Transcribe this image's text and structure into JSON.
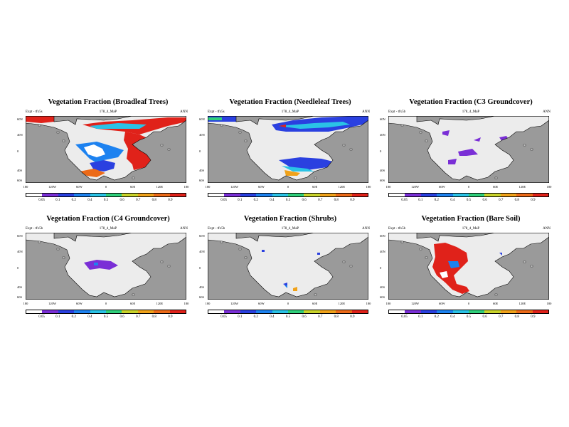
{
  "colors": {
    "ocean": "#9a9a9a",
    "land_low": "#ececec",
    "coast": "#000000",
    "scale": [
      "#ffffff",
      "#7a2fd6",
      "#2a40e0",
      "#1d82f0",
      "#2ac3e6",
      "#2fcf7a",
      "#c9d32a",
      "#f0a21a",
      "#ec6a18",
      "#e0221a"
    ]
  },
  "colorbar": {
    "labels": [
      "0.05",
      "0.1",
      "0.2",
      "0.4",
      "0.5",
      "0.6",
      "0.7",
      "0.8",
      "0.9"
    ]
  },
  "axes": {
    "lat_labels": [
      "60N",
      "40N",
      "0",
      "40S",
      "60S"
    ],
    "lon_labels": [
      "180",
      "120W",
      "60W",
      "0",
      "60E",
      "120E",
      "180"
    ]
  },
  "panels": [
    {
      "id": "broadleaf",
      "title": "Vegetation Fraction (Broadleaf Trees)",
      "expt": "Expt - tfx5s",
      "run": "178_4_MaP",
      "season": "ANN",
      "pattern": "broadleaf"
    },
    {
      "id": "needleleaf",
      "title": "Vegetation Fraction (Needleleaf Trees)",
      "expt": "Expt - tfx5s",
      "run": "178_4_MaP",
      "season": "ANN",
      "pattern": "needleleaf"
    },
    {
      "id": "c3",
      "title": "Vegetation Fraction (C3 Groundcover)",
      "expt": "Expt - tfx5b",
      "run": "178_4_MaP",
      "season": "ANN",
      "pattern": "c3"
    },
    {
      "id": "c4",
      "title": "Vegetation Fraction (C4 Groundcover)",
      "expt": "Expt - tfx5b",
      "run": "178_4_MaP",
      "season": "ANN",
      "pattern": "c4"
    },
    {
      "id": "shrubs",
      "title": "Vegetation Fraction (Shrubs)",
      "expt": "Expt - tfx5b",
      "run": "178_4_MaP",
      "season": "ANN",
      "pattern": "shrubs"
    },
    {
      "id": "baresoil",
      "title": "Vegetation Fraction (Bare Soil)",
      "expt": "Expt - tfx5b",
      "run": "178_4_MaP",
      "season": "ANN",
      "pattern": "baresoil"
    }
  ]
}
